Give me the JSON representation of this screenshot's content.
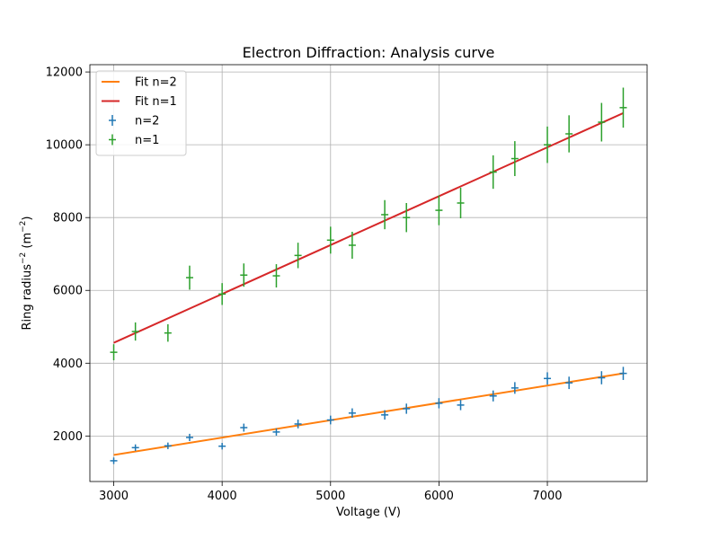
{
  "chart_data": {
    "type": "scatter",
    "title": "Electron Diffraction: Analysis curve",
    "xlabel": "Voltage (V)",
    "ylabel_main": "Ring radius",
    "ylabel_sup": "−2",
    "ylabel_unit_pre": " (m",
    "ylabel_unit_sup": "−2",
    "ylabel_unit_post": ")",
    "xlim": [
      2780,
      7920
    ],
    "ylim": [
      750,
      12200
    ],
    "xticks": [
      3000,
      4000,
      5000,
      6000,
      7000
    ],
    "yticks": [
      2000,
      4000,
      6000,
      8000,
      10000,
      12000
    ],
    "grid": true,
    "legend_position": "top-left",
    "legend": [
      {
        "label": "Fit n=2",
        "kind": "line",
        "color": "#ff7f0e"
      },
      {
        "label": "Fit n=1",
        "kind": "line",
        "color": "#d62728"
      },
      {
        "label": "n=2",
        "kind": "errorbar",
        "color": "#1f77b4"
      },
      {
        "label": "n=1",
        "kind": "errorbar",
        "color": "#2ca02c"
      }
    ],
    "series": [
      {
        "name": "n=2",
        "kind": "errorbar",
        "color": "#1f77b4",
        "x": [
          3000,
          3200,
          3500,
          3700,
          4000,
          4200,
          4500,
          4700,
          5000,
          5200,
          5500,
          5700,
          6000,
          6200,
          6500,
          6700,
          7000,
          7200,
          7500,
          7700
        ],
        "y": [
          1320,
          1680,
          1730,
          1960,
          1720,
          2230,
          2110,
          2330,
          2440,
          2630,
          2580,
          2750,
          2900,
          2850,
          3100,
          3320,
          3580,
          3460,
          3600,
          3720
        ],
        "yerr": [
          90,
          90,
          90,
          100,
          90,
          110,
          100,
          120,
          120,
          130,
          130,
          140,
          140,
          140,
          150,
          160,
          170,
          170,
          180,
          180
        ]
      },
      {
        "name": "n=1",
        "kind": "errorbar",
        "color": "#2ca02c",
        "x": [
          3000,
          3200,
          3500,
          3700,
          4000,
          4200,
          4500,
          4700,
          5000,
          5200,
          5500,
          5700,
          6000,
          6200,
          6500,
          6700,
          7000,
          7200,
          7500,
          7700
        ],
        "y": [
          4300,
          4870,
          4830,
          6350,
          5900,
          6420,
          6400,
          6960,
          7380,
          7240,
          8080,
          8000,
          8200,
          8400,
          9250,
          9620,
          10000,
          10300,
          10620,
          11020
        ],
        "yerr": [
          220,
          250,
          240,
          330,
          300,
          320,
          320,
          350,
          370,
          370,
          400,
          400,
          410,
          420,
          460,
          480,
          500,
          510,
          530,
          550
        ]
      },
      {
        "name": "Fit n=2",
        "kind": "line",
        "color": "#ff7f0e",
        "x": [
          3000,
          7700
        ],
        "y": [
          1480,
          3720
        ]
      },
      {
        "name": "Fit n=1",
        "kind": "line",
        "color": "#d62728",
        "x": [
          3000,
          7700
        ],
        "y": [
          4560,
          10870
        ]
      }
    ]
  }
}
